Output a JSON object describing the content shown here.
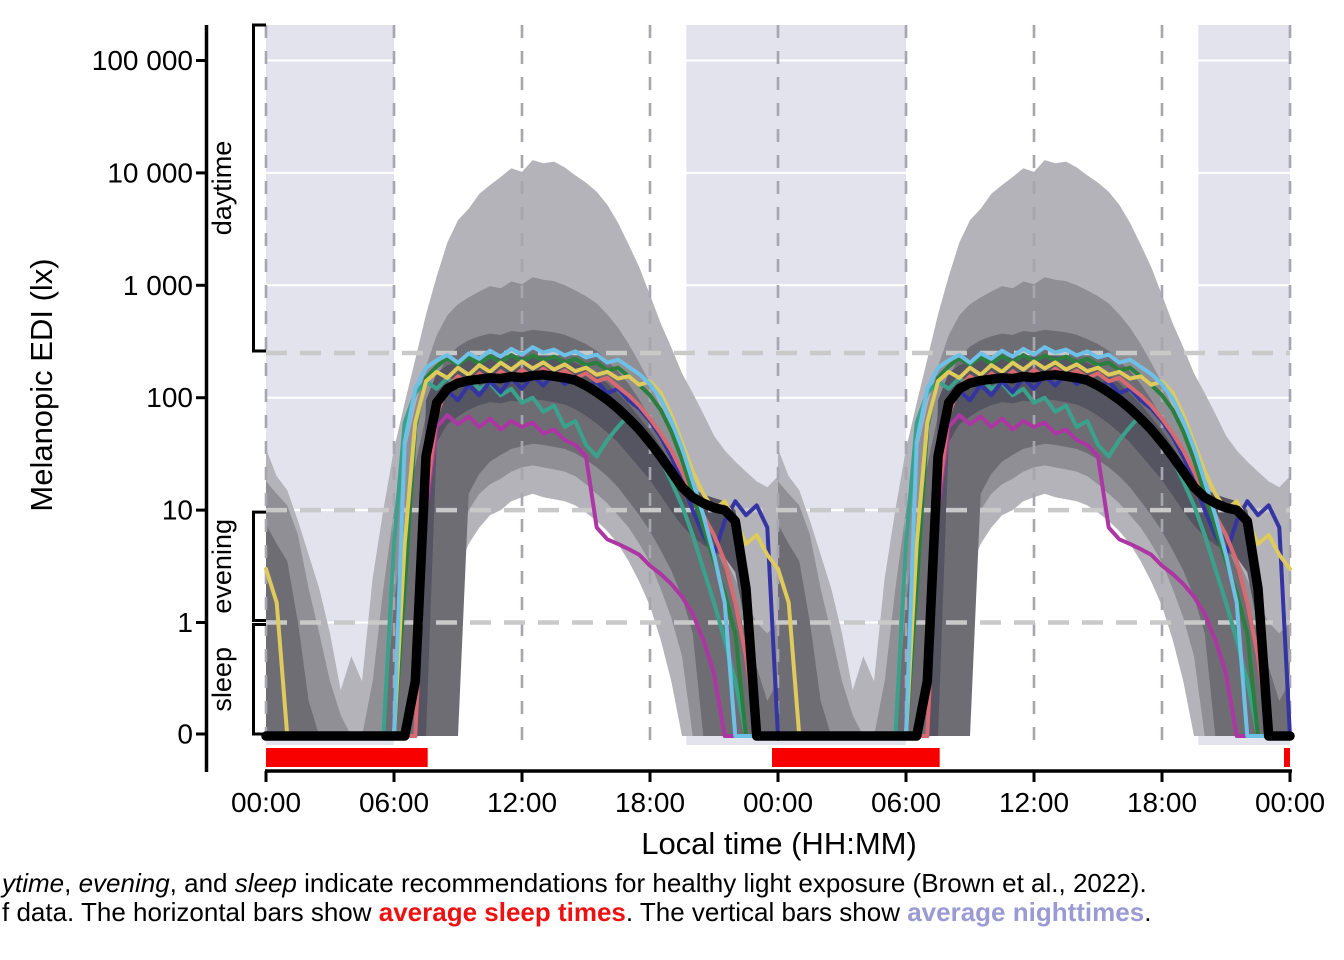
{
  "caption": {
    "line1": {
      "s1": "ytime",
      "s2": ", ",
      "s3": "evening",
      "s4": ", and ",
      "s5": "sleep",
      "s6": " indicate recommendations for healthy light exposure (Brown et al., 2022)."
    },
    "line2": {
      "s1": "f data. The horizontal bars show ",
      "s2": "average sleep times",
      "s3": ". The vertical bars show ",
      "s4": "average nighttimes",
      "s5": "."
    }
  },
  "chart_data": {
    "type": "line",
    "xlabel": "Local time (HH:MM)",
    "ylabel": "Melanopic EDI (lx)",
    "x_axis_hours": 48,
    "double_plot": true,
    "t_start": 0,
    "t_step_hours": 0.5,
    "repeats": 2,
    "repeat_offset_hours": 24,
    "x_ticks": [
      {
        "t": 0,
        "label": "00:00"
      },
      {
        "t": 6,
        "label": "06:00"
      },
      {
        "t": 12,
        "label": "12:00"
      },
      {
        "t": 18,
        "label": "18:00"
      },
      {
        "t": 24,
        "label": "00:00"
      },
      {
        "t": 30,
        "label": "06:00"
      },
      {
        "t": 36,
        "label": "12:00"
      },
      {
        "t": 42,
        "label": "18:00"
      },
      {
        "t": 48,
        "label": "00:00"
      }
    ],
    "y_ticks": [
      {
        "v": 100000,
        "label": "100 000"
      },
      {
        "v": 10000,
        "label": "10 000"
      },
      {
        "v": 1000,
        "label": "1 000"
      },
      {
        "v": 100,
        "label": "100"
      },
      {
        "v": 10,
        "label": "10"
      },
      {
        "v": 1,
        "label": "1"
      },
      {
        "v": 0,
        "label": "0"
      }
    ],
    "threshold_lines_lx": [
      250,
      10,
      1
    ],
    "guides": [
      {
        "label": "daytime",
        "v_low": 250,
        "v_high": "top"
      },
      {
        "label": "evening",
        "v_low": 1,
        "v_high": 10
      },
      {
        "label": "sleep",
        "v_low": 0,
        "v_high": 1
      }
    ],
    "night_bands_hours": [
      [
        0,
        6
      ],
      [
        19.7,
        30
      ],
      [
        43.7,
        48
      ]
    ],
    "sleep_bars_hours": [
      [
        0,
        7.58
      ],
      [
        23.72,
        31.58
      ],
      [
        47.72,
        48
      ]
    ],
    "colors": {
      "night_band": "#e3e3ee",
      "sleep_bar": "#f80000",
      "median": "#000000",
      "grid_dash_vertical": "#a6a6b0",
      "threshold_dash": "#c9c9c9",
      "axis": "#000000"
    },
    "ribbons": [
      {
        "name": "q05_q95",
        "color": "#b4b3b9",
        "hi": [
          35,
          20,
          15,
          8,
          4,
          2,
          0.8,
          0.25,
          0.5,
          0.3,
          2.5,
          10,
          35,
          90,
          220,
          550,
          1200,
          2400,
          3800,
          4800,
          6500,
          7800,
          9200,
          11000,
          10200,
          13000,
          12200,
          12600,
          11200,
          9500,
          8200,
          6800,
          5200,
          3600,
          2300,
          1450,
          820,
          460,
          280,
          165,
          110,
          72,
          46,
          34,
          27,
          22,
          18,
          16,
          20
        ],
        "lo": [
          0,
          0,
          0,
          0,
          0,
          0,
          0,
          0,
          0,
          0,
          0,
          0,
          0,
          0,
          0,
          0,
          0,
          1,
          3,
          5,
          7,
          9,
          10,
          12,
          13,
          14,
          13,
          12.5,
          12,
          11,
          9.5,
          8,
          6.5,
          5,
          3.5,
          2.3,
          1.4,
          0.7,
          0.3,
          0,
          0,
          0,
          0,
          0,
          0,
          0,
          0,
          0,
          0
        ]
      },
      {
        "name": "q10_q90",
        "color": "#918f96",
        "hi": [
          18,
          14,
          11,
          6,
          2,
          0.8,
          0.3,
          0.15,
          0.1,
          0.1,
          0.3,
          2,
          10,
          32,
          85,
          190,
          360,
          540,
          680,
          780,
          880,
          980,
          940,
          1080,
          1020,
          1180,
          1120,
          1090,
          1000,
          900,
          800,
          690,
          550,
          420,
          300,
          205,
          135,
          82,
          50,
          30,
          18,
          10,
          6,
          3.8,
          2.4,
          1.5,
          1,
          0.8,
          1
        ],
        "lo": [
          0,
          0,
          0,
          0,
          0,
          0,
          0,
          0,
          0,
          0,
          0,
          0,
          0,
          0,
          0,
          0,
          0,
          0,
          6,
          10,
          14,
          17,
          19,
          22,
          24,
          25,
          24,
          23,
          22,
          20,
          17,
          14,
          11.5,
          9,
          7,
          5,
          3.4,
          2,
          1.1,
          0.5,
          0,
          0,
          0,
          0,
          0,
          0,
          0,
          0,
          0
        ]
      },
      {
        "name": "q25_q75",
        "color": "#6e6d74",
        "hi": [
          7.5,
          5,
          3.5,
          1,
          0.2,
          0,
          0,
          0,
          0,
          0,
          0,
          0,
          1.5,
          8,
          25,
          70,
          150,
          230,
          285,
          325,
          352,
          372,
          362,
          392,
          382,
          402,
          392,
          382,
          362,
          332,
          300,
          262,
          212,
          172,
          132,
          96,
          66,
          43,
          28,
          18,
          12,
          7.8,
          5,
          3,
          1.5,
          0.8,
          0.4,
          0.2,
          0.3
        ],
        "lo": [
          0,
          0,
          0,
          0,
          0,
          0,
          0,
          0,
          0,
          0,
          0,
          0,
          0,
          0,
          0,
          0,
          0,
          0,
          0,
          14,
          21,
          27,
          31,
          35,
          37,
          39,
          38,
          36.5,
          35,
          32,
          28,
          24,
          20,
          16,
          12,
          9,
          6.5,
          4.4,
          2.9,
          1.7,
          0.8,
          0,
          0,
          0,
          0,
          0,
          0,
          0,
          0
        ]
      },
      {
        "name": "q40_q60",
        "color": "#555461",
        "hi": [
          0,
          0,
          0,
          0,
          0,
          0,
          0,
          0,
          0,
          0,
          0,
          0,
          0,
          0,
          0,
          95,
          165,
          195,
          208,
          218,
          224,
          229,
          227,
          234,
          229,
          239,
          234,
          227,
          219,
          204,
          184,
          159,
          134,
          109,
          87,
          67,
          51,
          37,
          26,
          19,
          15.5,
          13.8,
          12.8,
          12,
          10,
          3,
          0,
          0,
          0
        ],
        "lo": [
          0,
          0,
          0,
          0,
          0,
          0,
          0,
          0,
          0,
          0,
          0,
          0,
          0,
          0,
          0,
          0,
          40,
          58,
          68,
          78,
          86,
          91,
          89,
          94,
          92,
          97,
          95,
          91,
          87,
          79,
          69,
          59,
          49,
          40,
          31,
          24,
          18.5,
          13.5,
          9.8,
          7.3,
          5.8,
          4.9,
          4.3,
          3.8,
          2.8,
          0.9,
          0,
          0,
          0
        ]
      }
    ],
    "series": [
      {
        "name": "participant-magenta",
        "color": "#ac37a2",
        "values": [
          0,
          0,
          0,
          0,
          0,
          0,
          0,
          0,
          0,
          0,
          0,
          0,
          0,
          0,
          0,
          10,
          55,
          70,
          58,
          68,
          55,
          65,
          52,
          62,
          55,
          60,
          48,
          52,
          42,
          38,
          30,
          7,
          5.5,
          5,
          4.5,
          4,
          3.2,
          2.7,
          2.2,
          1.7,
          1.2,
          0.7,
          0.35,
          0,
          0,
          0,
          0,
          0,
          0
        ]
      },
      {
        "name": "participant-teal",
        "color": "#3aa28c",
        "values": [
          0,
          0,
          0,
          0,
          0,
          0,
          0,
          0,
          0,
          0,
          0,
          0,
          5,
          60,
          110,
          140,
          120,
          150,
          125,
          150,
          120,
          135,
          105,
          120,
          90,
          100,
          75,
          85,
          55,
          62,
          38,
          30,
          42,
          55,
          70,
          55,
          40,
          28,
          18,
          11,
          6,
          3,
          1.5,
          0.7,
          0.3,
          0,
          0,
          0,
          0
        ]
      },
      {
        "name": "participant-navy",
        "color": "#3434a2",
        "values": [
          0,
          0,
          0,
          0,
          0,
          0,
          0,
          0,
          0,
          0,
          0,
          0,
          0,
          0,
          0,
          20,
          80,
          115,
          95,
          130,
          105,
          140,
          112,
          150,
          120,
          158,
          128,
          162,
          132,
          155,
          122,
          140,
          110,
          120,
          95,
          80,
          62,
          45,
          30,
          18,
          10,
          6,
          4,
          8,
          12,
          9,
          11,
          7,
          0
        ]
      },
      {
        "name": "participant-salmon",
        "color": "#d76a70",
        "values": [
          0,
          0,
          0,
          0,
          0,
          0,
          0,
          0,
          0,
          0,
          0,
          0,
          0,
          0,
          0,
          12,
          70,
          125,
          155,
          135,
          165,
          142,
          172,
          148,
          178,
          152,
          182,
          155,
          175,
          150,
          165,
          140,
          150,
          125,
          105,
          85,
          65,
          48,
          34,
          22,
          14,
          9,
          6,
          3.5,
          1.5,
          0.5,
          0,
          0,
          0
        ]
      },
      {
        "name": "participant-green",
        "color": "#2b7f3e",
        "values": [
          0,
          0,
          0,
          0,
          0,
          0,
          0,
          0,
          0,
          0,
          0,
          0,
          0,
          2,
          55,
          150,
          190,
          225,
          195,
          230,
          200,
          235,
          205,
          240,
          210,
          238,
          215,
          232,
          205,
          222,
          195,
          205,
          175,
          185,
          155,
          130,
          105,
          78,
          50,
          28,
          14,
          7,
          3.5,
          1.8,
          0.8,
          0,
          0,
          0,
          0
        ]
      },
      {
        "name": "participant-yellow",
        "color": "#dfca5c",
        "values": [
          3,
          1.5,
          0,
          0,
          0,
          0,
          0,
          0,
          0,
          0,
          0,
          0,
          0,
          5,
          60,
          140,
          170,
          150,
          185,
          160,
          195,
          170,
          205,
          178,
          210,
          182,
          206,
          178,
          198,
          172,
          185,
          160,
          170,
          148,
          155,
          130,
          140,
          110,
          70,
          40,
          22,
          14,
          10,
          12,
          8,
          5,
          6,
          4,
          3
        ]
      },
      {
        "name": "participant-skyblue",
        "color": "#6fc0e7",
        "values": [
          0,
          0,
          0,
          0,
          0,
          0,
          0,
          0,
          0,
          0,
          0,
          0,
          0,
          40,
          120,
          185,
          215,
          240,
          205,
          248,
          222,
          262,
          232,
          272,
          242,
          282,
          252,
          268,
          238,
          258,
          228,
          242,
          205,
          218,
          188,
          162,
          132,
          98,
          62,
          36,
          18,
          9,
          4,
          1.5,
          0,
          0,
          0,
          0,
          0
        ]
      }
    ],
    "median": {
      "name": "median",
      "color": "#000000",
      "values": [
        0,
        0,
        0,
        0,
        0,
        0,
        0,
        0,
        0,
        0,
        0,
        0,
        0,
        0,
        0.3,
        30,
        90,
        120,
        135,
        142,
        146,
        150,
        148,
        154,
        151,
        157,
        160,
        155,
        150,
        143,
        128,
        112,
        96,
        80,
        65,
        52,
        40,
        30,
        22,
        16,
        13,
        11.5,
        10.5,
        10,
        8,
        2,
        0,
        0,
        0
      ]
    }
  }
}
